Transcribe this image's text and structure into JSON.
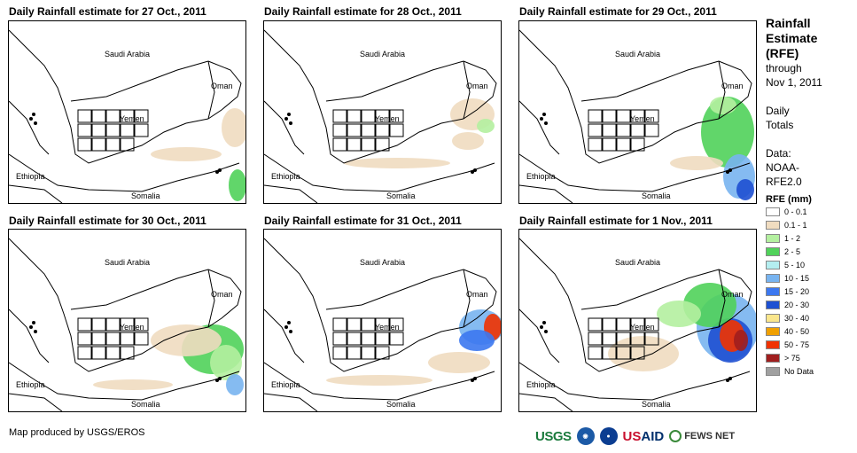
{
  "panels": [
    {
      "title": "Daily Rainfall estimate for 27 Oct., 2011"
    },
    {
      "title": "Daily Rainfall estimate for 28 Oct., 2011"
    },
    {
      "title": "Daily Rainfall estimate for 29 Oct., 2011"
    },
    {
      "title": "Daily Rainfall estimate for 30 Oct., 2011"
    },
    {
      "title": "Daily Rainfall estimate for 31 Oct., 2011"
    },
    {
      "title": "Daily Rainfall estimate for 1 Nov., 2011"
    }
  ],
  "map_labels": {
    "saudi": "Saudi Arabia",
    "oman": "Oman",
    "yemen": "Yemen",
    "ethiopia": "Ethiopia",
    "somalia": "Somalia"
  },
  "sidebar": {
    "title_lines": [
      "Rainfall",
      "Estimate",
      "(RFE)"
    ],
    "through_lines": [
      "through",
      "Nov 1, 2011"
    ],
    "daily_lines": [
      "Daily",
      "Totals"
    ],
    "data_lines": [
      "Data:",
      "NOAA-",
      "RFE2.0"
    ]
  },
  "legend": {
    "title": "RFE (mm)",
    "items": [
      {
        "label": "0 - 0.1",
        "color": "#ffffff"
      },
      {
        "label": "0.1 - 1",
        "color": "#f0dcc0"
      },
      {
        "label": "1 - 2",
        "color": "#b4f0a0"
      },
      {
        "label": "2 - 5",
        "color": "#50d25a"
      },
      {
        "label": "5 - 10",
        "color": "#b4eef0"
      },
      {
        "label": "10 - 15",
        "color": "#78b4f0"
      },
      {
        "label": "15 - 20",
        "color": "#3c78f0"
      },
      {
        "label": "20 - 30",
        "color": "#1e50d2"
      },
      {
        "label": "30 - 40",
        "color": "#fae68c"
      },
      {
        "label": "40 - 50",
        "color": "#f0a000"
      },
      {
        "label": "50 - 75",
        "color": "#f03200"
      },
      {
        "label": "> 75",
        "color": "#a01e1e"
      },
      {
        "label": "No Data",
        "color": "#a0a0a0"
      }
    ]
  },
  "credit": "Map produced by USGS/EROS",
  "logos": {
    "usgs": "USGS",
    "usaid_a": "US",
    "usaid_b": "AID",
    "fews": "FEWS NET"
  }
}
